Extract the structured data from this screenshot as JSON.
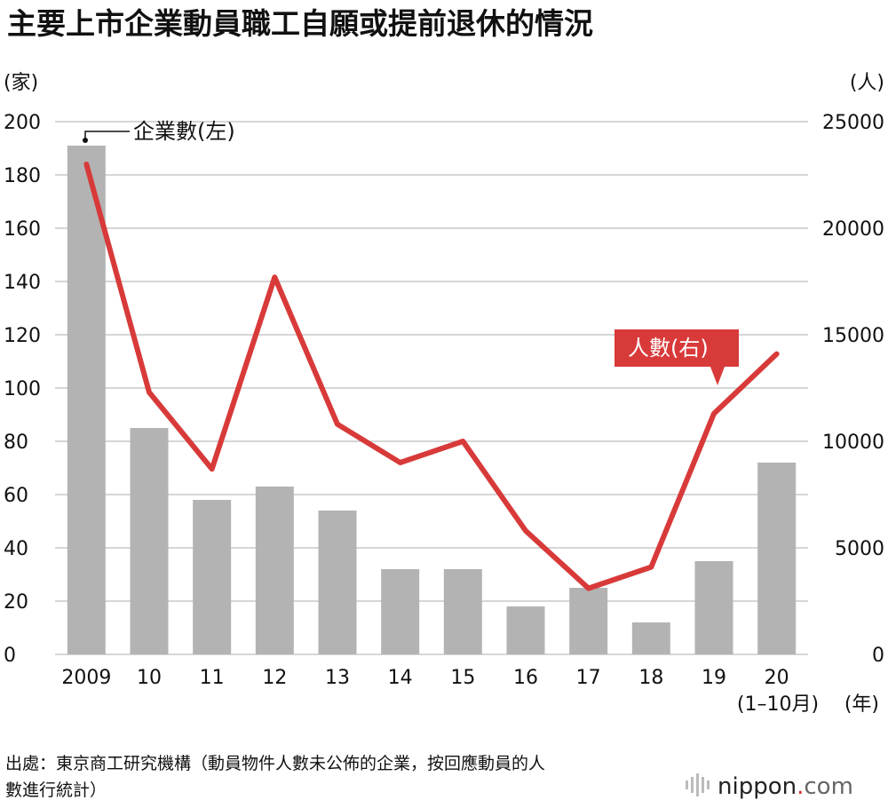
{
  "title": "主要上市企業動員職工自願或提前退休的情況",
  "chart_data": {
    "type": "bar+line",
    "categories": [
      "2009",
      "10",
      "11",
      "12",
      "13",
      "14",
      "15",
      "16",
      "17",
      "18",
      "19",
      "20"
    ],
    "category_sub": "(1–10月)",
    "x_unit": "(年)",
    "left_axis_unit": "(家)",
    "right_axis_unit": "(人)",
    "left_ylim": [
      0,
      200
    ],
    "right_ylim": [
      0,
      25000
    ],
    "left_ticks": [
      "0",
      "20",
      "40",
      "60",
      "80",
      "100",
      "120",
      "140",
      "160",
      "180",
      "200"
    ],
    "right_ticks": [
      "0",
      "5000",
      "10000",
      "15000",
      "20000",
      "25000"
    ],
    "grid": true,
    "series": [
      {
        "name": "企業數(左)",
        "type": "bar",
        "axis": "left",
        "color": "#b3b3b3",
        "values": [
          191,
          85,
          58,
          63,
          54,
          32,
          32,
          18,
          25,
          12,
          35,
          72
        ]
      },
      {
        "name": "人數(右)",
        "type": "line",
        "axis": "right",
        "color": "#d83a3a",
        "values": [
          23000,
          12300,
          8700,
          17700,
          10800,
          9000,
          10000,
          5800,
          3100,
          4100,
          11300,
          14100
        ]
      }
    ]
  },
  "source_note": {
    "line1": "出處：東京商工研究機構（動員物件人數未公佈的企業，按回應動員的人",
    "line2": "數進行統計）"
  },
  "brand": {
    "part1": "nippon",
    "dot": ".",
    "part2": "com"
  },
  "colors": {
    "bar": "#b3b3b3",
    "line": "#d83a3a",
    "grid": "#c8c8c8",
    "text": "#111111"
  }
}
